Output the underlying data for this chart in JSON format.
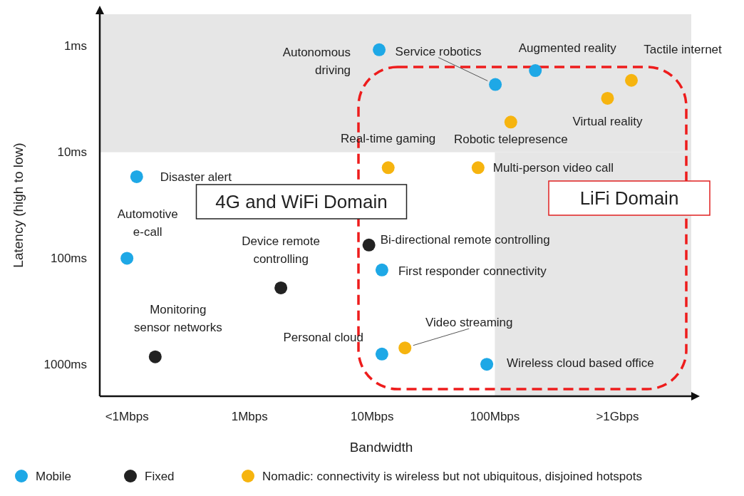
{
  "chart_data": {
    "type": "scatter",
    "xlabel": "Bandwidth",
    "ylabel": "Latency (high to low)",
    "log": "xy",
    "marker": "circle",
    "legend": "bottom",
    "xlim": [
      0.06,
      4000
    ],
    "xticks": [
      {
        "value": 0.1,
        "label": "<1Mbps"
      },
      {
        "value": 1,
        "label": "1Mbps"
      },
      {
        "value": 10,
        "label": "10Mbps"
      },
      {
        "value": 100,
        "label": "100Mbps"
      },
      {
        "value": 1000,
        "label": ">1Gbps"
      }
    ],
    "ylim": [
      2000,
      0.5
    ],
    "yticks": [
      {
        "value": 1,
        "label": "1ms"
      },
      {
        "value": 10,
        "label": "10ms"
      },
      {
        "value": 100,
        "label": "100ms"
      },
      {
        "value": 1000,
        "label": "1000ms"
      }
    ],
    "bands": [
      {
        "axis": "y",
        "from": 10,
        "to": 0.5,
        "color": "#e6e6e6"
      },
      {
        "axis": "x",
        "from": 100,
        "to": 4000,
        "color": "#e6e6e6"
      }
    ],
    "series": [
      {
        "name": "Mobile",
        "color": "#1ea8e6",
        "x": [
          11.4,
          101,
          214,
          0.12,
          0.1,
          12,
          12,
          86
        ],
        "values": [
          1.08,
          2.3,
          1.7,
          17,
          100,
          129,
          800,
          1000
        ]
      },
      {
        "name": "Fixed",
        "color": "#222222",
        "x": [
          9.4,
          1.8,
          0.17
        ],
        "values": [
          75,
          190,
          850
        ]
      },
      {
        "name": "Nomadic: connectivity is wireless but not ubiquitous, disjoined hotspots",
        "color": "#f6b40f",
        "x": [
          1300,
          830,
          135,
          13.5,
          73,
          18.5
        ],
        "values": [
          2.1,
          3.1,
          5.2,
          14,
          14,
          700
        ]
      }
    ],
    "annotations": [
      {
        "text": "Autonomous\ndriving",
        "x": 11.4,
        "y": 1.08
      },
      {
        "text": "Service robotics",
        "x": 101,
        "y": 2.3
      },
      {
        "text": "Augmented reality",
        "x": 214,
        "y": 1.7
      },
      {
        "text": "Tactile internet",
        "x": 1300,
        "y": 2.1
      },
      {
        "text": "Virtual reality",
        "x": 830,
        "y": 3.1
      },
      {
        "text": "Robotic telepresence",
        "x": 135,
        "y": 5.2
      },
      {
        "text": "Real-time gaming",
        "x": 13.5,
        "y": 14
      },
      {
        "text": "Multi-person video call",
        "x": 73,
        "y": 14
      },
      {
        "text": "Disaster alert",
        "x": 0.12,
        "y": 17
      },
      {
        "text": "Automotive\ne-call",
        "x": 0.1,
        "y": 100
      },
      {
        "text": "Bi-directional remote controlling",
        "x": 9.4,
        "y": 75
      },
      {
        "text": "Device remote\ncontrolling",
        "x": 1.8,
        "y": 190
      },
      {
        "text": "First responder connectivity",
        "x": 12,
        "y": 129
      },
      {
        "text": "Monitoring\nsensor networks",
        "x": 0.17,
        "y": 850
      },
      {
        "text": "Personal cloud",
        "x": 12,
        "y": 800
      },
      {
        "text": "Video streaming",
        "x": 18.5,
        "y": 700
      },
      {
        "text": "Wireless cloud based office",
        "x": 86,
        "y": 1000
      },
      "4G and WiFi Domain",
      "LiFi Domain"
    ]
  }
}
